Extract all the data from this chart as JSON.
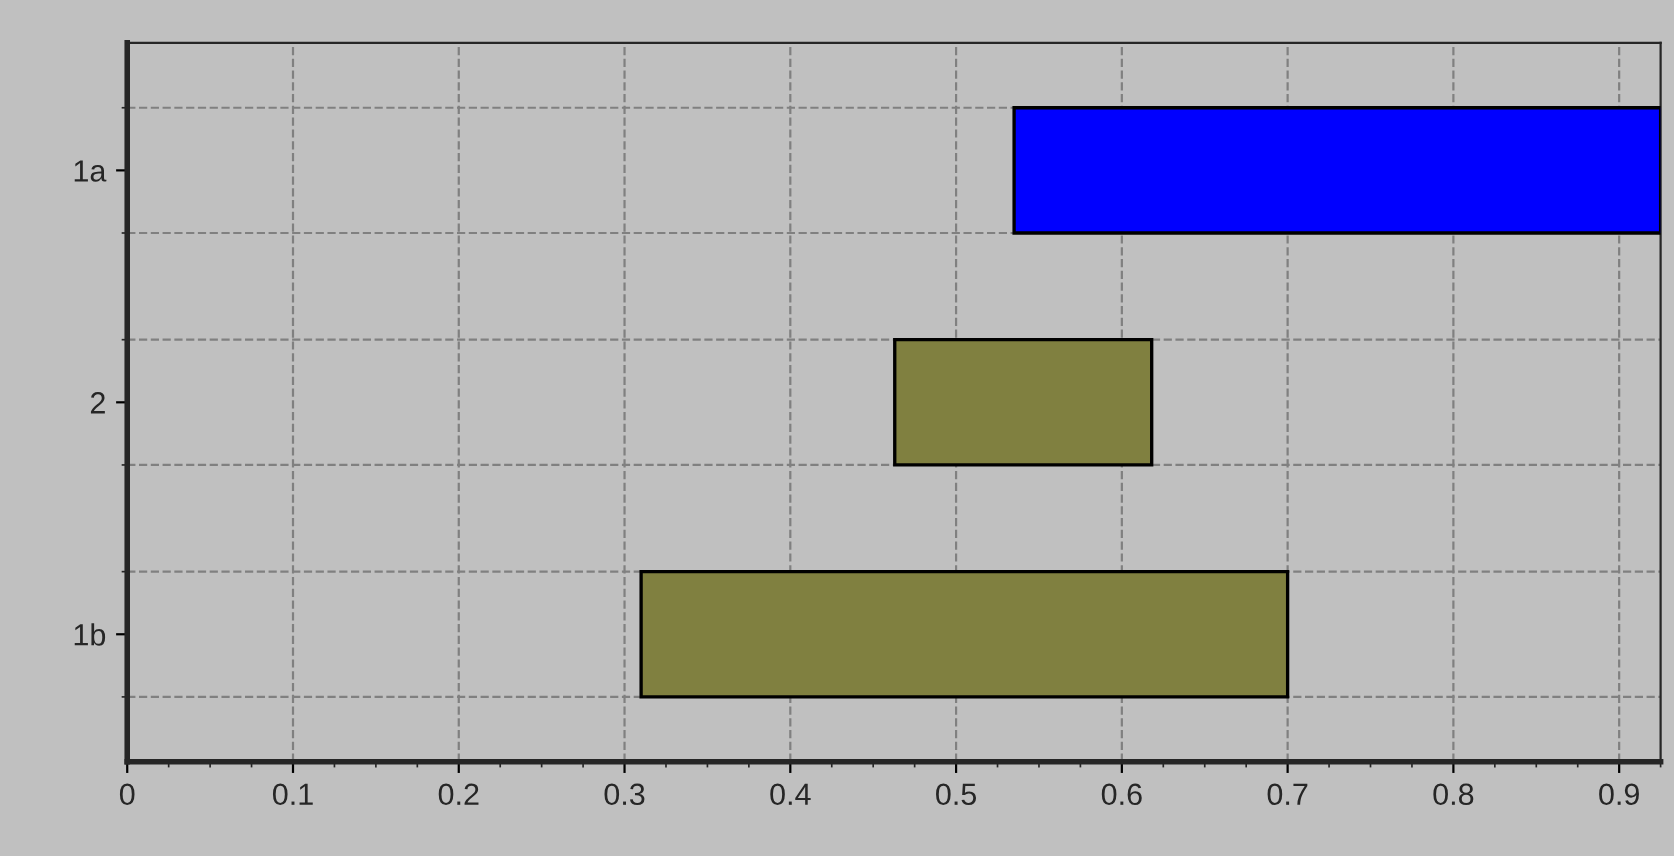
{
  "chart_data": {
    "type": "bar",
    "orientation": "horizontal",
    "categories": [
      "1a",
      "2",
      "1b"
    ],
    "values": [
      0.39,
      0.155,
      0.39
    ],
    "base": [
      0.535,
      0.463,
      0.31
    ],
    "colors": [
      "#0000ff",
      "#808040",
      "#808040"
    ],
    "xlim": [
      0,
      0.925
    ],
    "xticks": [
      0,
      0.1,
      0.2,
      0.3,
      0.4,
      0.5,
      0.6,
      0.7,
      0.8,
      0.9
    ],
    "grid": true
  }
}
